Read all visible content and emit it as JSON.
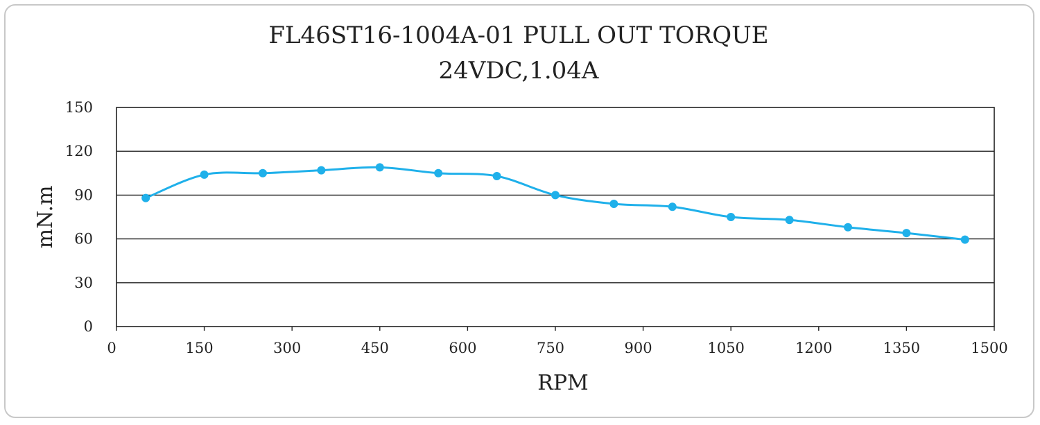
{
  "chart_data": {
    "type": "line",
    "title": "FL46ST16-1004A-01 PULL OUT TORQUE",
    "subtitle": "24VDC,1.04A",
    "xlabel": "RPM",
    "ylabel": "mN.m",
    "xlim": [
      0,
      1500
    ],
    "ylim": [
      0,
      150
    ],
    "xticks": [
      0,
      150,
      300,
      450,
      600,
      750,
      900,
      1050,
      1200,
      1350,
      1500
    ],
    "yticks": [
      0,
      30,
      60,
      90,
      120,
      150
    ],
    "grid": true,
    "series": [
      {
        "color": "#1fb0ea",
        "points": [
          [
            50,
            88
          ],
          [
            150,
            104
          ],
          [
            250,
            105
          ],
          [
            350,
            107
          ],
          [
            450,
            109
          ],
          [
            550,
            105
          ],
          [
            650,
            103
          ],
          [
            750,
            90
          ],
          [
            850,
            84
          ],
          [
            950,
            82
          ],
          [
            1050,
            75
          ],
          [
            1150,
            73
          ],
          [
            1250,
            68
          ],
          [
            1350,
            64
          ],
          [
            1450,
            59.5
          ]
        ]
      }
    ]
  }
}
